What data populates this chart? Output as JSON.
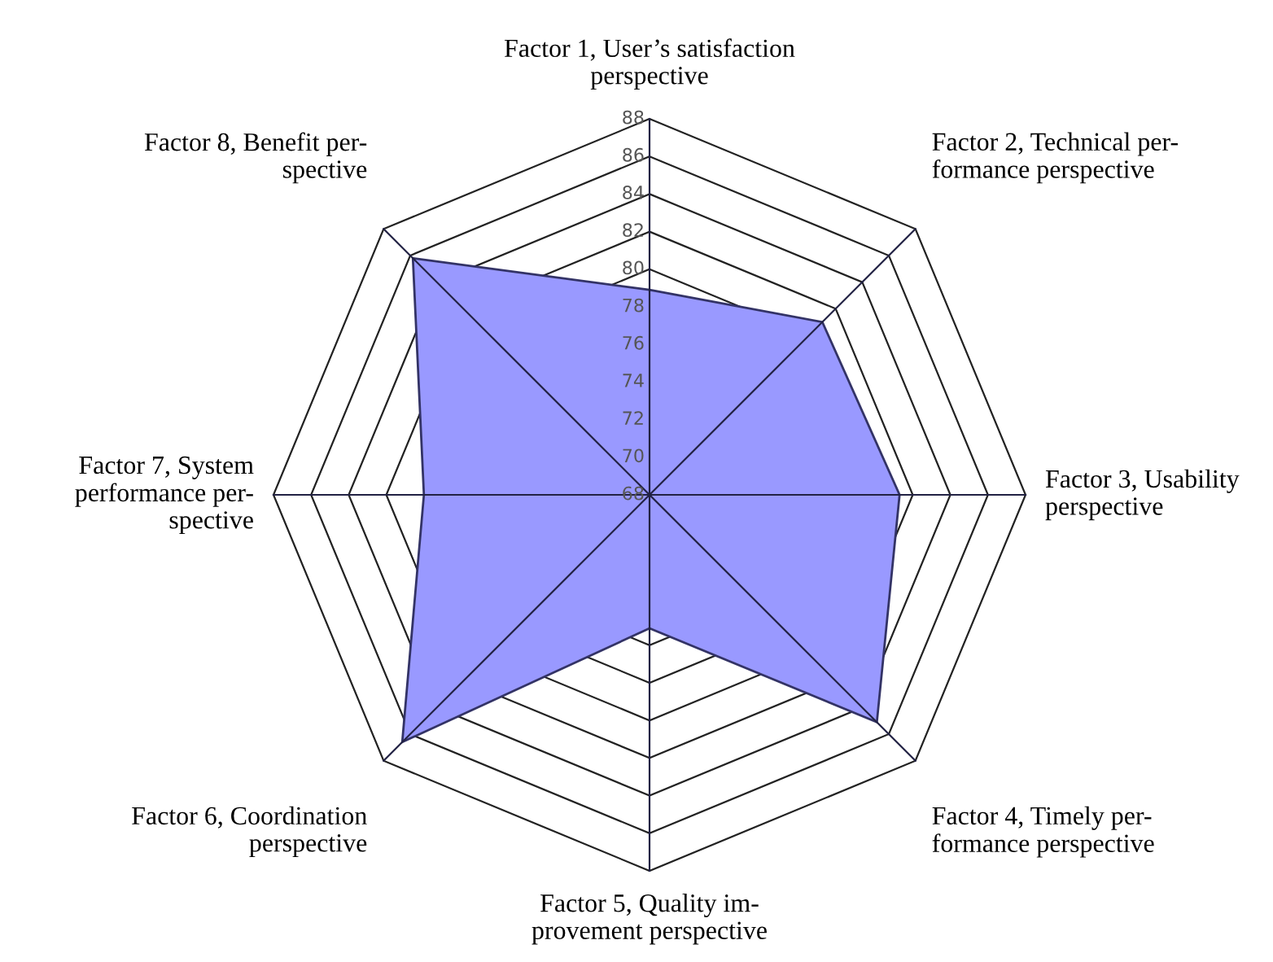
{
  "chart_data": {
    "type": "radar",
    "categories": [
      "Factor 1, User’s satisfaction\nperspective",
      "Factor 2, Technical per-\nformance perspective",
      "Factor 3, Usability\nperspective",
      "Factor 4, Timely per-\nformance perspective",
      "Factor 5, Quality im-\nprovement perspective",
      "Factor 6, Coordination\nperspective",
      "Factor 7, System\nperformance per-\nspective",
      "Factor 8, Benefit per-\nspective"
    ],
    "series": [
      {
        "color": "#9999ff",
        "values": [
          78.9,
          81.0,
          81.3,
          85.1,
          75.1,
          86.6,
          80.0,
          85.8
        ]
      }
    ],
    "ylim": [
      68,
      88
    ],
    "yticks": [
      68,
      70,
      72,
      74,
      76,
      78,
      80,
      82,
      84,
      86,
      88
    ],
    "grid": true,
    "legend": false
  }
}
